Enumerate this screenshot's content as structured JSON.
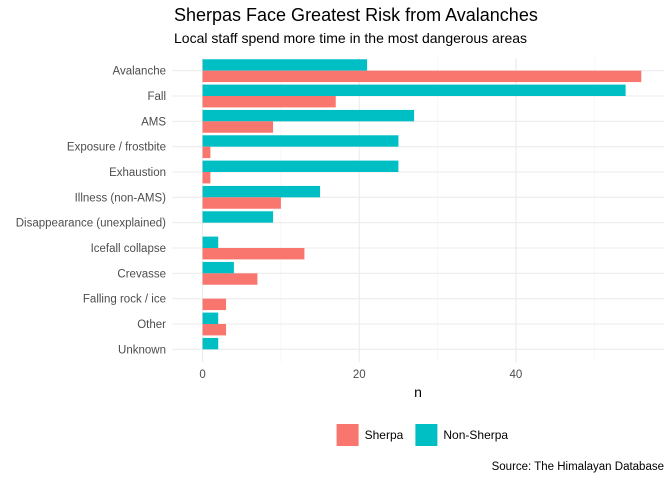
{
  "chart_data": {
    "type": "bar",
    "orientation": "horizontal",
    "title": "Sherpas Face Greatest Risk from Avalanches",
    "subtitle": "Local staff spend more time in the most dangerous areas",
    "xlabel": "n",
    "ylabel": "",
    "caption": "Source: The Himalayan Database",
    "categories": [
      "Avalanche",
      "Fall",
      "AMS",
      "Exposure / frostbite",
      "Exhaustion",
      "Illness (non-AMS)",
      "Disappearance (unexplained)",
      "Icefall collapse",
      "Crevasse",
      "Falling rock / ice",
      "Other",
      "Unknown"
    ],
    "series": [
      {
        "name": "Sherpa",
        "color": "#F8766D",
        "values": [
          56,
          17,
          9,
          1,
          1,
          10,
          0,
          13,
          7,
          3,
          3,
          0
        ]
      },
      {
        "name": "Non-Sherpa",
        "color": "#00BFC4",
        "values": [
          21,
          54,
          27,
          25,
          25,
          15,
          9,
          2,
          4,
          0,
          2,
          2
        ]
      }
    ],
    "x_ticks": [
      0,
      20,
      40
    ],
    "xlim": [
      -3.9,
      58.9
    ],
    "grid": true,
    "legend_position": "bottom"
  }
}
